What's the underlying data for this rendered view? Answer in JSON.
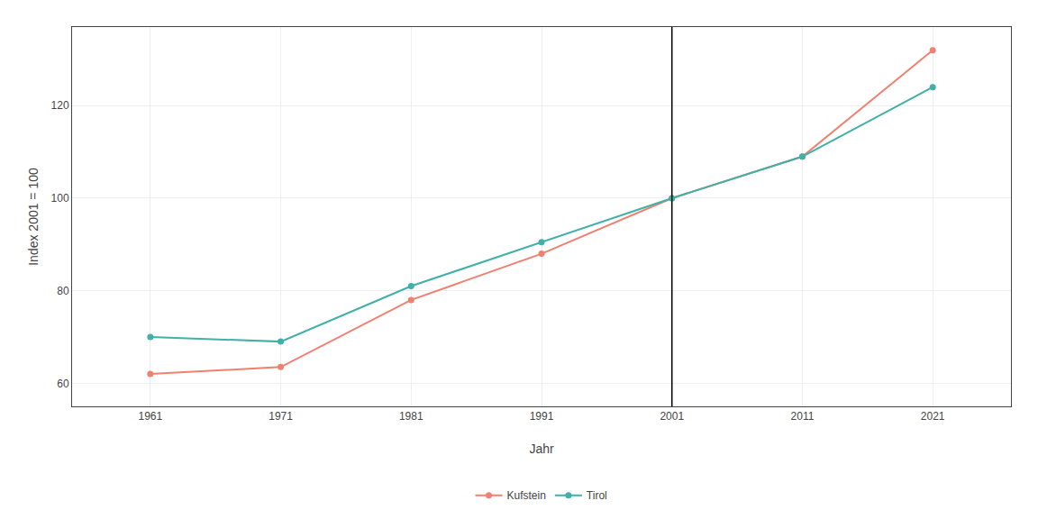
{
  "chart_data": {
    "type": "line",
    "x": [
      1961,
      1971,
      1981,
      1991,
      2001,
      2011,
      2021
    ],
    "series": [
      {
        "name": "Kufstein",
        "color": "#F08070",
        "values": [
          62,
          63.5,
          78,
          88,
          100,
          109,
          132
        ]
      },
      {
        "name": "Tirol",
        "color": "#40B0A8",
        "values": [
          70,
          69,
          81,
          90.5,
          100,
          109,
          124
        ]
      }
    ],
    "x_label": "Jahr",
    "y_label": "Index 2001 = 100",
    "xlim": [
      1955,
      2027
    ],
    "xticks": [
      1961,
      1971,
      1981,
      1991,
      2001,
      2011,
      2021
    ],
    "ylim": [
      55,
      137
    ],
    "yticks": [
      60,
      80,
      100,
      120
    ],
    "vline": 2001,
    "grid": true,
    "legend": "bottom",
    "marker": "circle",
    "line_style": "solid"
  }
}
